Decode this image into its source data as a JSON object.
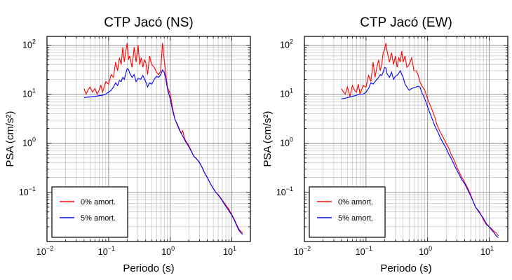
{
  "chart_data": [
    {
      "type": "line",
      "title": "CTP Jacó (NS)",
      "xlabel": "Periodo (s)",
      "ylabel": "PSA (cm/s²)",
      "xscale": "log",
      "yscale": "log",
      "xlim": [
        0.01,
        20
      ],
      "ylim": [
        0.01,
        150
      ],
      "grid": true,
      "legend_position": "bottom-left",
      "x_ticks": [
        {
          "base": "10",
          "exp": "−2"
        },
        {
          "base": "10",
          "exp": "−1"
        },
        {
          "base": "10",
          "exp": "0"
        },
        {
          "base": "10",
          "exp": "1"
        }
      ],
      "y_ticks": [
        {
          "base": "10",
          "exp": "−1"
        },
        {
          "base": "10",
          "exp": "0"
        },
        {
          "base": "10",
          "exp": "1"
        },
        {
          "base": "10",
          "exp": "2"
        }
      ],
      "series": [
        {
          "name": "0% amort.",
          "color": "#ff0000",
          "x": [
            0.04,
            0.043,
            0.046,
            0.05,
            0.055,
            0.06,
            0.065,
            0.07,
            0.075,
            0.08,
            0.09,
            0.1,
            0.11,
            0.12,
            0.13,
            0.14,
            0.15,
            0.16,
            0.17,
            0.18,
            0.19,
            0.2,
            0.21,
            0.22,
            0.24,
            0.26,
            0.28,
            0.3,
            0.32,
            0.34,
            0.36,
            0.38,
            0.4,
            0.43,
            0.46,
            0.5,
            0.55,
            0.6,
            0.65,
            0.7,
            0.75,
            0.8,
            0.85,
            0.9,
            1.0,
            1.1,
            1.2,
            1.3,
            1.4,
            1.5,
            1.6,
            1.7,
            1.8,
            1.9,
            2.0,
            2.2,
            2.4,
            2.6,
            2.8,
            3.0,
            3.3,
            3.6,
            4.0,
            4.5,
            5.0,
            5.5,
            6.0,
            7.0,
            8.0,
            9.0,
            10.0,
            11.0,
            12.0,
            13.0,
            14.0,
            15.0
          ],
          "y": [
            13,
            10,
            12,
            14,
            11,
            13,
            10,
            12,
            15,
            11,
            18,
            16,
            25,
            22,
            45,
            30,
            55,
            40,
            90,
            45,
            75,
            110,
            50,
            60,
            35,
            90,
            45,
            100,
            40,
            55,
            35,
            50,
            45,
            25,
            60,
            40,
            35,
            28,
            25,
            30,
            110,
            50,
            25,
            14,
            10,
            5,
            3,
            2.5,
            2,
            1.6,
            1.8,
            1.3,
            1.1,
            1.0,
            0.9,
            0.7,
            0.55,
            0.5,
            0.45,
            0.4,
            0.32,
            0.25,
            0.2,
            0.15,
            0.12,
            0.1,
            0.09,
            0.07,
            0.055,
            0.045,
            0.035,
            0.028,
            0.022,
            0.018,
            0.016,
            0.015
          ]
        },
        {
          "name": "5% amort.",
          "color": "#0000ff",
          "x": [
            0.04,
            0.05,
            0.06,
            0.07,
            0.08,
            0.09,
            0.1,
            0.11,
            0.12,
            0.13,
            0.14,
            0.15,
            0.16,
            0.17,
            0.18,
            0.19,
            0.2,
            0.21,
            0.22,
            0.24,
            0.26,
            0.28,
            0.3,
            0.33,
            0.36,
            0.4,
            0.43,
            0.46,
            0.5,
            0.55,
            0.6,
            0.65,
            0.7,
            0.75,
            0.8,
            0.85,
            0.9,
            1.0,
            1.1,
            1.2,
            1.3,
            1.4,
            1.5,
            1.6,
            1.7,
            1.8,
            1.9,
            2.0,
            2.2,
            2.4,
            2.6,
            2.8,
            3.0,
            3.3,
            3.6,
            4.0,
            4.5,
            5.0,
            5.5,
            6.0,
            7.0,
            8.0,
            9.0,
            10.0,
            11.0,
            12.0,
            13.0,
            14.0,
            15.0
          ],
          "y": [
            8.5,
            8.8,
            9,
            9.3,
            9.5,
            10,
            11,
            12,
            14,
            17,
            15,
            19,
            18,
            22,
            20,
            26,
            33,
            32,
            27,
            22,
            25,
            18,
            21,
            20,
            24,
            18,
            14,
            17,
            16,
            20,
            23,
            22,
            25,
            31,
            28,
            20,
            13,
            8,
            4.5,
            3,
            2.4,
            1.9,
            1.6,
            1.4,
            1.2,
            1.05,
            0.95,
            0.85,
            0.68,
            0.55,
            0.5,
            0.45,
            0.4,
            0.32,
            0.25,
            0.2,
            0.15,
            0.12,
            0.1,
            0.088,
            0.068,
            0.052,
            0.042,
            0.034,
            0.027,
            0.021,
            0.017,
            0.015,
            0.014
          ]
        }
      ]
    },
    {
      "type": "line",
      "title": "CTP Jacó (EW)",
      "xlabel": "Periodo (s)",
      "ylabel": "PSA (cm/s²)",
      "xscale": "log",
      "yscale": "log",
      "xlim": [
        0.01,
        20
      ],
      "ylim": [
        0.01,
        150
      ],
      "grid": true,
      "legend_position": "bottom-left",
      "x_ticks": [
        {
          "base": "10",
          "exp": "−2"
        },
        {
          "base": "10",
          "exp": "−1"
        },
        {
          "base": "10",
          "exp": "0"
        },
        {
          "base": "10",
          "exp": "1"
        }
      ],
      "y_ticks": [
        {
          "base": "10",
          "exp": "−1"
        },
        {
          "base": "10",
          "exp": "0"
        },
        {
          "base": "10",
          "exp": "1"
        },
        {
          "base": "10",
          "exp": "2"
        }
      ],
      "series": [
        {
          "name": "0% amort.",
          "color": "#ff0000",
          "x": [
            0.04,
            0.043,
            0.046,
            0.05,
            0.055,
            0.06,
            0.065,
            0.07,
            0.075,
            0.08,
            0.09,
            0.1,
            0.11,
            0.12,
            0.13,
            0.14,
            0.15,
            0.16,
            0.17,
            0.18,
            0.19,
            0.2,
            0.21,
            0.22,
            0.24,
            0.26,
            0.28,
            0.3,
            0.32,
            0.34,
            0.36,
            0.38,
            0.4,
            0.43,
            0.46,
            0.5,
            0.55,
            0.6,
            0.65,
            0.7,
            0.75,
            0.8,
            0.9,
            1.0,
            1.1,
            1.2,
            1.3,
            1.4,
            1.5,
            1.6,
            1.8,
            2.0,
            2.2,
            2.4,
            2.6,
            2.8,
            3.0,
            3.3,
            3.6,
            4.0,
            4.5,
            5.0,
            5.5,
            6.0,
            7.0,
            8.0,
            9.0,
            10.0,
            11.0,
            12.0,
            13.0,
            14.0
          ],
          "y": [
            13,
            11,
            10,
            14,
            9,
            15,
            12,
            11,
            16,
            10,
            15,
            14,
            24,
            18,
            45,
            22,
            35,
            50,
            30,
            40,
            70,
            80,
            110,
            75,
            45,
            70,
            40,
            60,
            35,
            55,
            45,
            75,
            45,
            60,
            35,
            40,
            55,
            30,
            30,
            25,
            18,
            15,
            12,
            8,
            6,
            4.5,
            3.5,
            2.5,
            2,
            1.7,
            1.3,
            1.0,
            0.8,
            0.6,
            0.5,
            0.4,
            0.32,
            0.25,
            0.2,
            0.16,
            0.12,
            0.09,
            0.065,
            0.05,
            0.04,
            0.028,
            0.022,
            0.02,
            0.018,
            0.016,
            0.015,
            0.013
          ]
        },
        {
          "name": "5% amort.",
          "color": "#0000ff",
          "x": [
            0.04,
            0.05,
            0.06,
            0.07,
            0.08,
            0.09,
            0.1,
            0.11,
            0.12,
            0.13,
            0.14,
            0.15,
            0.16,
            0.17,
            0.18,
            0.19,
            0.2,
            0.21,
            0.22,
            0.24,
            0.26,
            0.28,
            0.3,
            0.33,
            0.36,
            0.4,
            0.43,
            0.46,
            0.5,
            0.55,
            0.6,
            0.65,
            0.7,
            0.75,
            0.8,
            0.9,
            1.0,
            1.1,
            1.2,
            1.3,
            1.4,
            1.5,
            1.6,
            1.8,
            2.0,
            2.2,
            2.4,
            2.6,
            2.8,
            3.0,
            3.3,
            3.6,
            4.0,
            4.5,
            5.0,
            5.5,
            6.0,
            7.0,
            8.0,
            9.0,
            10.0,
            11.0,
            12.0,
            13.0,
            14.0
          ],
          "y": [
            8,
            8.5,
            9,
            9.5,
            10,
            10,
            11,
            13,
            17,
            16,
            18,
            20,
            22,
            25,
            24,
            28,
            35,
            34,
            26,
            22,
            28,
            20,
            23,
            25,
            30,
            22,
            16,
            14,
            12,
            13,
            13.5,
            14,
            14.5,
            14,
            11,
            8,
            5.5,
            4,
            3,
            2.3,
            1.9,
            1.6,
            1.3,
            1.0,
            0.8,
            0.6,
            0.5,
            0.4,
            0.33,
            0.28,
            0.22,
            0.18,
            0.15,
            0.11,
            0.085,
            0.065,
            0.05,
            0.038,
            0.03,
            0.023,
            0.02,
            0.017,
            0.015,
            0.013,
            0.012
          ]
        }
      ]
    }
  ]
}
